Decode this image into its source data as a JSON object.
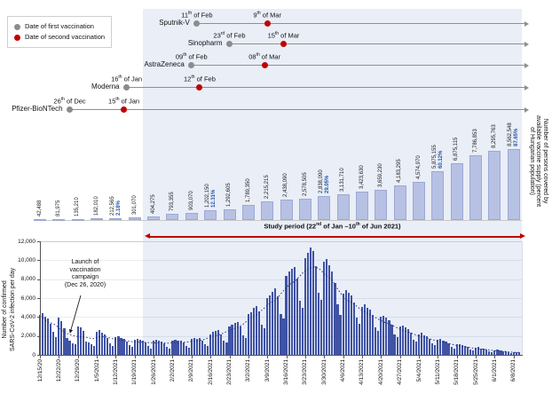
{
  "legend": {
    "first_label": "Date of first vaccination",
    "second_label": "Date of second vaccination",
    "first_color": "#8c8c8c",
    "second_color": "#c00000"
  },
  "timeline": {
    "rows": [
      {
        "name": "Sputnik-V",
        "first_label": "11th of Feb",
        "first_day": 58,
        "second_label": "9th of Mar",
        "second_day": 84
      },
      {
        "name": "Sinopharm",
        "first_label": "23rd of Feb",
        "first_day": 70,
        "second_label": "15th of Mar",
        "second_day": 90
      },
      {
        "name": "AstraZeneca",
        "first_label": "09th of Feb",
        "first_day": 56,
        "second_label": "08th of Mar",
        "second_day": 83
      },
      {
        "name": "Moderna",
        "first_label": "16th of Jan",
        "first_day": 32,
        "second_label": "12th of Feb",
        "second_day": 59
      },
      {
        "name": "Pfizer-BioNTech",
        "first_label": "26th of Dec",
        "first_day": 11,
        "second_label": "15th of Jan",
        "second_day": 31
      }
    ]
  },
  "study_period": {
    "label": "Study period (22nd of Jan –10th of Jun 2021)",
    "start_day": 38,
    "color": "#c00000"
  },
  "chart_data": [
    {
      "id": "vaccine_supply",
      "type": "bar",
      "ylabel_lines": [
        "Number of persons covered by",
        "available vaccine supply (percent",
        "of Hungarian population)"
      ],
      "bar_color": "#b7c1e3",
      "percent_color": "#2456a8",
      "values": [
        42488,
        81975,
        135210,
        182010,
        212565,
        301070,
        404275,
        793355,
        903070,
        1202150,
        1292605,
        1789350,
        2215215,
        2438090,
        2578505,
        2838090,
        3131710,
        3423630,
        3659230,
        4183295,
        4574970,
        5875155,
        6875115,
        7786853,
        8295763,
        8562548
      ],
      "labels": [
        "42,488",
        "81,975",
        "135,210",
        "182,010",
        "212,565",
        "301,070",
        "404,275",
        "793,355",
        "903,070",
        "1,202,150",
        "1,292,605",
        "1,789,350",
        "2,215,215",
        "2,438,090",
        "2,578,505",
        "2,838,090",
        "3,131,710",
        "3,423,630",
        "3,659,230",
        "4,183,295",
        "4,574,970",
        "5,875,155",
        "6,875,115",
        "7,786,853",
        "8,295,763",
        "8,562,548"
      ],
      "percent_labels": {
        "4": "2.18%",
        "9": "12.31%",
        "15": "29.05%",
        "21": "60.12%",
        "25": "87.65%"
      }
    },
    {
      "id": "daily_infections",
      "type": "bar",
      "ylabel_lines": [
        "Number of confirmed",
        "SARS-CoV-2 infection per day"
      ],
      "bar_color": "#4053a4",
      "trend_color": "#253372",
      "trend": "7-day moving average (dotted line)",
      "ylim": [
        0,
        12000
      ],
      "ytick_labels": [
        "0",
        "2,000",
        "4,000",
        "6,000",
        "8,000",
        "10,000",
        "12,000"
      ],
      "x_tick_labels": [
        "12/15/20",
        "12/22/20",
        "12/29/20",
        "1/5/2021",
        "1/12/2021",
        "1/19/2021",
        "1/26/2021",
        "2/2/2021",
        "2/9/2021",
        "2/16/2021",
        "2/23/2021",
        "3/2/2021",
        "3/9/2021",
        "3/16/2021",
        "3/23/2021",
        "3/30/2021",
        "4/6/2021",
        "4/13/2021",
        "4/20/2021",
        "4/27/2021",
        "5/4/2021",
        "5/11/2021",
        "5/18/2021",
        "5/25/2021",
        "6/1/2021",
        "6/8/2021"
      ],
      "values": [
        4200,
        4400,
        4000,
        3800,
        3300,
        2400,
        1900,
        3900,
        3600,
        2800,
        1800,
        1500,
        1200,
        1100,
        3000,
        2900,
        2500,
        1400,
        1300,
        1100,
        900,
        2400,
        2600,
        2300,
        2200,
        1800,
        1200,
        950,
        1900,
        2000,
        1800,
        1700,
        1400,
        1000,
        800,
        1600,
        1700,
        1600,
        1500,
        1300,
        900,
        700,
        1500,
        1600,
        1500,
        1400,
        1200,
        850,
        700,
        1500,
        1600,
        1500,
        1500,
        1300,
        900,
        750,
        1700,
        1800,
        1700,
        1800,
        1500,
        1100,
        900,
        2200,
        2400,
        2500,
        2600,
        2200,
        1500,
        1300,
        3000,
        3200,
        3400,
        3500,
        3000,
        2100,
        1800,
        4300,
        4500,
        5000,
        5200,
        4600,
        3200,
        2800,
        6000,
        6300,
        6700,
        7000,
        6200,
        4300,
        3800,
        8300,
        8800,
        9100,
        9300,
        8100,
        5700,
        5000,
        10200,
        10800,
        11300,
        11000,
        9400,
        6600,
        5800,
        9800,
        10100,
        9500,
        8800,
        7600,
        5300,
        4200,
        6500,
        6800,
        6600,
        6300,
        5500,
        3900,
        3300,
        5100,
        5300,
        5000,
        4800,
        4200,
        2900,
        2500,
        4000,
        4100,
        3900,
        3700,
        3200,
        2200,
        1900,
        3000,
        3100,
        2900,
        2700,
        2300,
        1600,
        1400,
        2200,
        2300,
        2100,
        2000,
        1700,
        1200,
        1000,
        1600,
        1700,
        1500,
        1400,
        1200,
        850,
        700,
        1100,
        1150,
        1000,
        950,
        800,
        550,
        450,
        750,
        800,
        700,
        650,
        550,
        380,
        310,
        500,
        520,
        450,
        420,
        350,
        240,
        200,
        300,
        280,
        250
      ],
      "annotation_lines": [
        "Launch of",
        "vaccination",
        "campaign",
        "(Dec 26, 2020)"
      ],
      "annotation_day": 11
    }
  ]
}
